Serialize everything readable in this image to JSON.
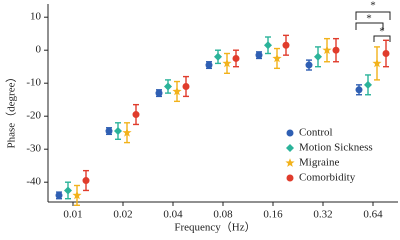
{
  "chart_data": {
    "type": "errorbar",
    "x_label": "Frequency（Hz）",
    "y_label": "Phase（degree）",
    "categories": [
      "0.01",
      "0.02",
      "0.04",
      "0.08",
      "0.16",
      "0.32",
      "0.64"
    ],
    "ylim": [
      -46,
      14
    ],
    "yticks": [
      -40,
      -30,
      -20,
      -10,
      0,
      10
    ],
    "series": [
      {
        "name": "Control",
        "color": "#2f5fb3",
        "marker": "circle",
        "values": [
          -44,
          -24.5,
          -13,
          -4.5,
          -1.5,
          -4.5,
          -12
        ],
        "errors": [
          1,
          1,
          1,
          1,
          1,
          1.5,
          1.5
        ]
      },
      {
        "name": "Motion Sickness",
        "color": "#2bb39a",
        "marker": "diamond",
        "values": [
          -42.5,
          -24.5,
          -11,
          -2,
          1.5,
          -2,
          -10.5
        ],
        "errors": [
          2.5,
          2.5,
          2,
          2,
          2.5,
          3,
          3
        ]
      },
      {
        "name": "Migraine",
        "color": "#f2b21b",
        "marker": "star",
        "values": [
          -44,
          -25,
          -12.5,
          -4,
          -2.5,
          0,
          -4
        ],
        "errors": [
          3,
          3,
          3,
          3,
          3,
          3.5,
          5
        ]
      },
      {
        "name": "Comorbidity",
        "color": "#e03c2c",
        "marker": "circle",
        "values": [
          -39.5,
          -19.5,
          -11,
          -2.5,
          1.5,
          0,
          -1
        ],
        "errors": [
          3,
          3,
          3,
          2.5,
          3,
          3.5,
          4
        ]
      }
    ],
    "legend": "lower-right",
    "annotations": [
      "*",
      "*",
      "*"
    ]
  }
}
